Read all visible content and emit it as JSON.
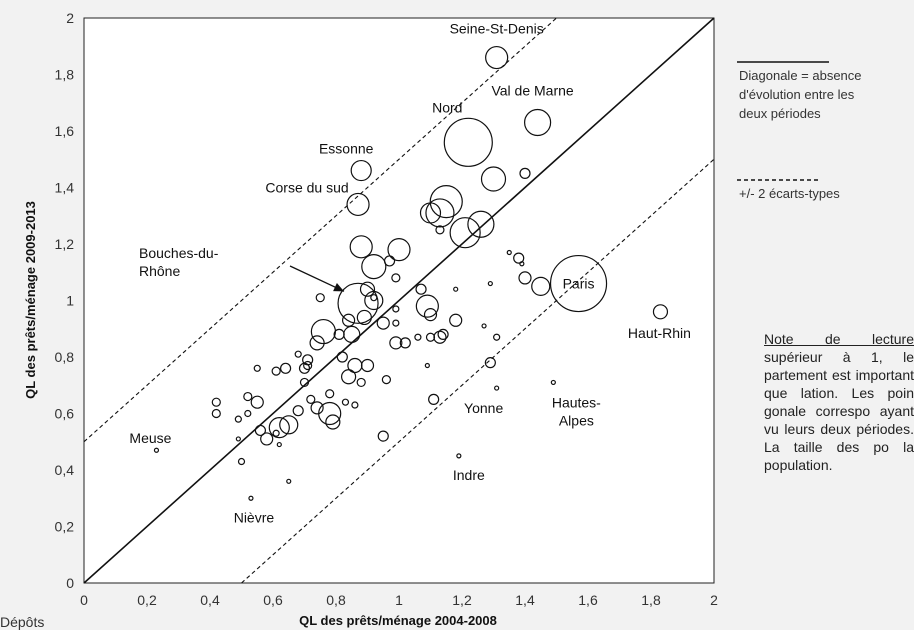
{
  "chart_data": {
    "type": "scatter",
    "xlabel": "QL des prêts/ménage 2004-2008",
    "ylabel": "QL des prêts/ménage 2009-2013",
    "xlim": [
      0,
      2
    ],
    "ylim": [
      0,
      2
    ],
    "xticks": [
      "0",
      "0,2",
      "0,4",
      "0,6",
      "0,8",
      "1",
      "1,2",
      "1,4",
      "1,6",
      "1,8",
      "2"
    ],
    "yticks": [
      "0",
      "0,2",
      "0,4",
      "0,6",
      "0,8",
      "1",
      "1,2",
      "1,4",
      "1,6",
      "1,8",
      "2"
    ],
    "grid": false,
    "reference_lines": [
      {
        "kind": "diagonal",
        "style": "solid",
        "intercept": 0
      },
      {
        "kind": "diagonal",
        "style": "dashed",
        "intercept": 0.5
      },
      {
        "kind": "diagonal",
        "style": "dashed",
        "intercept": -0.5
      }
    ],
    "labeled_points": [
      {
        "name": "Seine-St-Denis",
        "x": 1.31,
        "y": 1.86,
        "size": 11
      },
      {
        "name": "Val de Marne",
        "x": 1.44,
        "y": 1.63,
        "size": 13
      },
      {
        "name": "Nord",
        "x": 1.22,
        "y": 1.56,
        "size": 24
      },
      {
        "name": "Essonne",
        "x": 0.88,
        "y": 1.46,
        "size": 10
      },
      {
        "name": "Corse du sud",
        "x": 0.87,
        "y": 1.34,
        "size": 11
      },
      {
        "name": "Bouches-du-Rhône",
        "x": 0.87,
        "y": 0.99,
        "size": 20
      },
      {
        "name": "Paris",
        "x": 1.57,
        "y": 1.06,
        "size": 28
      },
      {
        "name": "Haut-Rhin",
        "x": 1.83,
        "y": 0.96,
        "size": 7
      },
      {
        "name": "Yonne",
        "x": 1.31,
        "y": 0.69,
        "size": 2
      },
      {
        "name": "Hautes-Alpes",
        "x": 1.49,
        "y": 0.71,
        "size": 2
      },
      {
        "name": "Meuse",
        "x": 0.23,
        "y": 0.47,
        "size": 2
      },
      {
        "name": "Indre",
        "x": 1.19,
        "y": 0.45,
        "size": 2
      },
      {
        "name": "Nièvre",
        "x": 0.53,
        "y": 0.3,
        "size": 2
      }
    ],
    "other_points": [
      {
        "x": 1.15,
        "y": 1.35,
        "size": 16
      },
      {
        "x": 1.1,
        "y": 1.31,
        "size": 10
      },
      {
        "x": 1.26,
        "y": 1.27,
        "size": 13
      },
      {
        "x": 1.21,
        "y": 1.24,
        "size": 15
      },
      {
        "x": 1.13,
        "y": 1.31,
        "size": 14
      },
      {
        "x": 1.3,
        "y": 1.43,
        "size": 12
      },
      {
        "x": 1.4,
        "y": 1.45,
        "size": 5
      },
      {
        "x": 1.13,
        "y": 1.25,
        "size": 4
      },
      {
        "x": 0.88,
        "y": 1.19,
        "size": 11
      },
      {
        "x": 1.0,
        "y": 1.18,
        "size": 11
      },
      {
        "x": 0.92,
        "y": 1.12,
        "size": 12
      },
      {
        "x": 0.97,
        "y": 1.14,
        "size": 5
      },
      {
        "x": 1.07,
        "y": 1.04,
        "size": 5
      },
      {
        "x": 0.99,
        "y": 1.08,
        "size": 4
      },
      {
        "x": 0.9,
        "y": 1.04,
        "size": 7
      },
      {
        "x": 0.75,
        "y": 1.01,
        "size": 4
      },
      {
        "x": 0.92,
        "y": 1.0,
        "size": 9
      },
      {
        "x": 1.09,
        "y": 0.98,
        "size": 11
      },
      {
        "x": 0.95,
        "y": 0.92,
        "size": 6
      },
      {
        "x": 0.89,
        "y": 0.94,
        "size": 7
      },
      {
        "x": 0.76,
        "y": 0.89,
        "size": 12
      },
      {
        "x": 0.85,
        "y": 0.88,
        "size": 8
      },
      {
        "x": 0.84,
        "y": 0.93,
        "size": 6
      },
      {
        "x": 0.81,
        "y": 0.88,
        "size": 5
      },
      {
        "x": 1.02,
        "y": 0.85,
        "size": 5
      },
      {
        "x": 0.99,
        "y": 0.85,
        "size": 6
      },
      {
        "x": 1.1,
        "y": 0.87,
        "size": 4
      },
      {
        "x": 1.13,
        "y": 0.87,
        "size": 6
      },
      {
        "x": 1.14,
        "y": 0.88,
        "size": 5
      },
      {
        "x": 0.74,
        "y": 0.85,
        "size": 7
      },
      {
        "x": 0.82,
        "y": 0.8,
        "size": 5
      },
      {
        "x": 0.86,
        "y": 0.77,
        "size": 7
      },
      {
        "x": 0.84,
        "y": 0.73,
        "size": 7
      },
      {
        "x": 0.9,
        "y": 0.77,
        "size": 6
      },
      {
        "x": 0.88,
        "y": 0.71,
        "size": 4
      },
      {
        "x": 0.71,
        "y": 0.79,
        "size": 5
      },
      {
        "x": 0.7,
        "y": 0.76,
        "size": 5
      },
      {
        "x": 0.71,
        "y": 0.77,
        "size": 4
      },
      {
        "x": 0.7,
        "y": 0.71,
        "size": 4
      },
      {
        "x": 0.64,
        "y": 0.76,
        "size": 5
      },
      {
        "x": 0.61,
        "y": 0.75,
        "size": 4
      },
      {
        "x": 0.55,
        "y": 0.76,
        "size": 3
      },
      {
        "x": 0.78,
        "y": 0.6,
        "size": 11
      },
      {
        "x": 0.74,
        "y": 0.62,
        "size": 6
      },
      {
        "x": 0.79,
        "y": 0.57,
        "size": 7
      },
      {
        "x": 0.78,
        "y": 0.67,
        "size": 4
      },
      {
        "x": 0.72,
        "y": 0.65,
        "size": 4
      },
      {
        "x": 0.68,
        "y": 0.61,
        "size": 5
      },
      {
        "x": 0.62,
        "y": 0.55,
        "size": 10
      },
      {
        "x": 0.65,
        "y": 0.56,
        "size": 9
      },
      {
        "x": 0.58,
        "y": 0.51,
        "size": 6
      },
      {
        "x": 0.55,
        "y": 0.64,
        "size": 6
      },
      {
        "x": 0.52,
        "y": 0.66,
        "size": 4
      },
      {
        "x": 0.52,
        "y": 0.6,
        "size": 3
      },
      {
        "x": 0.56,
        "y": 0.54,
        "size": 5
      },
      {
        "x": 0.42,
        "y": 0.64,
        "size": 4
      },
      {
        "x": 0.42,
        "y": 0.6,
        "size": 4
      },
      {
        "x": 0.49,
        "y": 0.58,
        "size": 3
      },
      {
        "x": 0.49,
        "y": 0.51,
        "size": 2
      },
      {
        "x": 0.5,
        "y": 0.43,
        "size": 3
      },
      {
        "x": 0.62,
        "y": 0.49,
        "size": 2
      },
      {
        "x": 0.65,
        "y": 0.36,
        "size": 2
      },
      {
        "x": 0.61,
        "y": 0.53,
        "size": 3
      },
      {
        "x": 0.95,
        "y": 0.52,
        "size": 5
      },
      {
        "x": 1.11,
        "y": 0.65,
        "size": 5
      },
      {
        "x": 1.06,
        "y": 0.87,
        "size": 3
      },
      {
        "x": 1.1,
        "y": 0.95,
        "size": 6
      },
      {
        "x": 1.18,
        "y": 1.04,
        "size": 2
      },
      {
        "x": 1.29,
        "y": 1.06,
        "size": 2
      },
      {
        "x": 1.38,
        "y": 1.15,
        "size": 5
      },
      {
        "x": 1.35,
        "y": 1.17,
        "size": 2
      },
      {
        "x": 1.39,
        "y": 1.13,
        "size": 2
      },
      {
        "x": 1.4,
        "y": 1.08,
        "size": 6
      },
      {
        "x": 1.45,
        "y": 1.05,
        "size": 9
      },
      {
        "x": 1.31,
        "y": 0.87,
        "size": 3
      },
      {
        "x": 1.27,
        "y": 0.91,
        "size": 2
      },
      {
        "x": 1.29,
        "y": 0.78,
        "size": 5
      },
      {
        "x": 1.18,
        "y": 0.93,
        "size": 6
      },
      {
        "x": 1.09,
        "y": 0.77,
        "size": 2
      },
      {
        "x": 0.99,
        "y": 0.92,
        "size": 3
      },
      {
        "x": 0.99,
        "y": 0.97,
        "size": 3
      },
      {
        "x": 0.86,
        "y": 0.63,
        "size": 3
      },
      {
        "x": 0.96,
        "y": 0.72,
        "size": 4
      },
      {
        "x": 0.83,
        "y": 0.64,
        "size": 3
      },
      {
        "x": 0.68,
        "y": 0.81,
        "size": 3
      },
      {
        "x": 0.92,
        "y": 1.01,
        "size": 3
      }
    ],
    "legend": [
      {
        "style": "solid",
        "text": [
          "Diagonale  = absence",
          "d'évolution entre les",
          "deux périodes"
        ]
      },
      {
        "style": "dashed",
        "text": [
          "+/- 2 écarts-types"
        ]
      }
    ]
  },
  "note": {
    "title": "Note de lecture",
    "body": "supérieur à 1, le partement est important que lation. Les poin gonale correspo ayant vu leurs deux périodes. La taille des po la population."
  },
  "corner_text": "Dépôts"
}
